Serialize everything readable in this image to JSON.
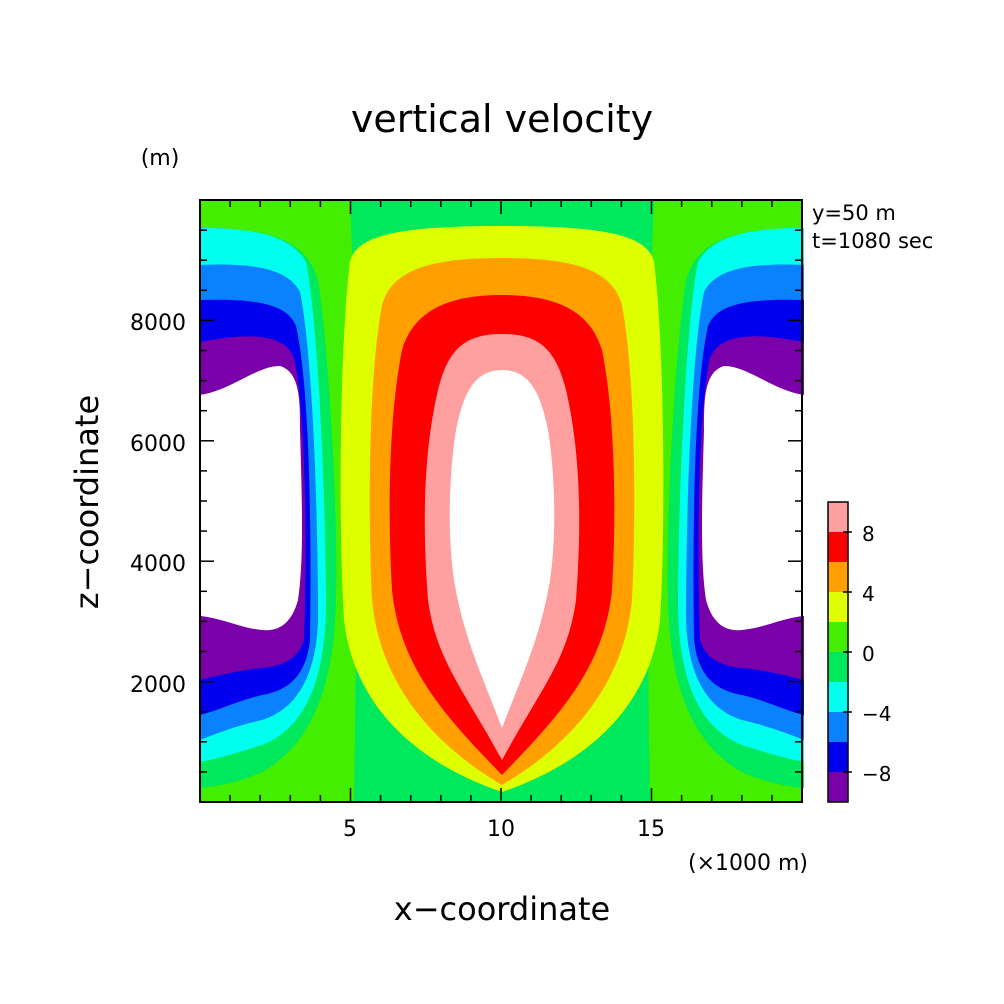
{
  "chart_data": {
    "type": "heatmap",
    "title": "vertical velocity",
    "xlabel": "x−coordinate",
    "ylabel": "z−coordinate",
    "x_unit": "(×1000 m)",
    "y_unit": "(m)",
    "info": [
      "y=50  m",
      "t=1080 sec"
    ],
    "xlim": [
      0,
      20
    ],
    "ylim": [
      0,
      10000
    ],
    "x_ticks": [
      5,
      10,
      15
    ],
    "x_tick_labels": [
      "5",
      "10",
      "15"
    ],
    "y_ticks": [
      2000,
      4000,
      6000,
      8000
    ],
    "y_tick_labels": [
      "2000",
      "4000",
      "6000",
      "8000"
    ],
    "colorbar": {
      "levels": [
        -10,
        -8,
        -6,
        -4,
        -2,
        0,
        2,
        4,
        6,
        8,
        10
      ],
      "tick_labels": [
        "8",
        "4",
        "0",
        "−4",
        "−8"
      ],
      "tick_values": [
        8,
        4,
        0,
        -4,
        -8
      ],
      "colors": [
        "#7a00aa",
        "#0000ee",
        "#0a82ff",
        "#00ffee",
        "#00e85c",
        "#44ee00",
        "#ddff00",
        "#ffa000",
        "#ff0000",
        "#ffa0a0"
      ]
    },
    "grid": false
  }
}
